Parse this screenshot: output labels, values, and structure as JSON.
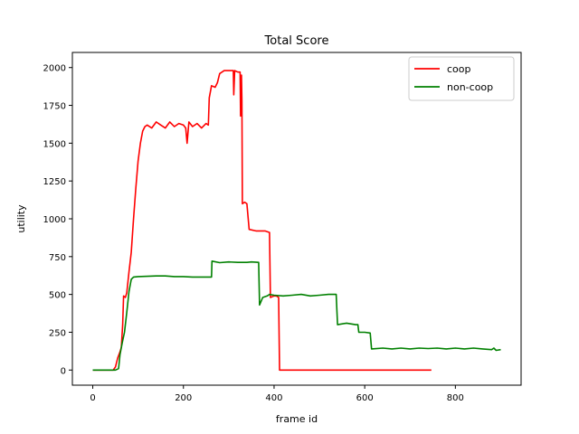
{
  "chart_data": {
    "type": "line",
    "title": "Total Score",
    "xlabel": "frame id",
    "ylabel": "utility",
    "xlim": [
      -45,
      945
    ],
    "ylim": [
      -100,
      2100
    ],
    "xticks": [
      0,
      200,
      400,
      600,
      800
    ],
    "yticks": [
      0,
      250,
      500,
      750,
      1000,
      1250,
      1500,
      1750,
      2000
    ],
    "grid": false,
    "legend_position": "top-right",
    "series": [
      {
        "name": "coop",
        "color": "#ff0000",
        "points": [
          [
            0,
            0
          ],
          [
            45,
            0
          ],
          [
            50,
            20
          ],
          [
            55,
            80
          ],
          [
            60,
            120
          ],
          [
            63,
            150
          ],
          [
            66,
            300
          ],
          [
            68,
            490
          ],
          [
            72,
            480
          ],
          [
            75,
            510
          ],
          [
            80,
            650
          ],
          [
            85,
            780
          ],
          [
            90,
            1000
          ],
          [
            95,
            1200
          ],
          [
            100,
            1380
          ],
          [
            105,
            1500
          ],
          [
            110,
            1580
          ],
          [
            115,
            1610
          ],
          [
            120,
            1620
          ],
          [
            130,
            1600
          ],
          [
            140,
            1640
          ],
          [
            150,
            1620
          ],
          [
            160,
            1600
          ],
          [
            170,
            1640
          ],
          [
            180,
            1610
          ],
          [
            190,
            1630
          ],
          [
            200,
            1620
          ],
          [
            205,
            1600
          ],
          [
            208,
            1500
          ],
          [
            212,
            1640
          ],
          [
            220,
            1610
          ],
          [
            230,
            1630
          ],
          [
            240,
            1600
          ],
          [
            250,
            1630
          ],
          [
            255,
            1620
          ],
          [
            257,
            1800
          ],
          [
            262,
            1880
          ],
          [
            270,
            1870
          ],
          [
            275,
            1900
          ],
          [
            280,
            1960
          ],
          [
            290,
            1980
          ],
          [
            300,
            1980
          ],
          [
            310,
            1980
          ],
          [
            311,
            1820
          ],
          [
            313,
            1980
          ],
          [
            320,
            1970
          ],
          [
            325,
            1970
          ],
          [
            326,
            1680
          ],
          [
            328,
            1950
          ],
          [
            329,
            1780
          ],
          [
            330,
            1100
          ],
          [
            335,
            1110
          ],
          [
            340,
            1100
          ],
          [
            345,
            930
          ],
          [
            360,
            920
          ],
          [
            370,
            920
          ],
          [
            380,
            920
          ],
          [
            390,
            910
          ],
          [
            392,
            480
          ],
          [
            400,
            490
          ],
          [
            405,
            490
          ],
          [
            410,
            480
          ],
          [
            412,
            0
          ],
          [
            747,
            0
          ]
        ]
      },
      {
        "name": "non-coop",
        "color": "#008000",
        "points": [
          [
            0,
            0
          ],
          [
            50,
            0
          ],
          [
            57,
            10
          ],
          [
            60,
            100
          ],
          [
            65,
            180
          ],
          [
            70,
            250
          ],
          [
            75,
            380
          ],
          [
            80,
            520
          ],
          [
            85,
            600
          ],
          [
            90,
            615
          ],
          [
            100,
            618
          ],
          [
            120,
            620
          ],
          [
            140,
            622
          ],
          [
            160,
            622
          ],
          [
            180,
            618
          ],
          [
            200,
            618
          ],
          [
            220,
            615
          ],
          [
            240,
            615
          ],
          [
            262,
            615
          ],
          [
            263,
            720
          ],
          [
            280,
            710
          ],
          [
            300,
            715
          ],
          [
            320,
            712
          ],
          [
            340,
            712
          ],
          [
            350,
            715
          ],
          [
            366,
            712
          ],
          [
            368,
            430
          ],
          [
            375,
            480
          ],
          [
            385,
            490
          ],
          [
            390,
            500
          ],
          [
            400,
            495
          ],
          [
            420,
            490
          ],
          [
            440,
            495
          ],
          [
            460,
            500
          ],
          [
            480,
            490
          ],
          [
            500,
            495
          ],
          [
            520,
            500
          ],
          [
            537,
            500
          ],
          [
            540,
            300
          ],
          [
            560,
            310
          ],
          [
            580,
            300
          ],
          [
            585,
            300
          ],
          [
            587,
            250
          ],
          [
            600,
            250
          ],
          [
            612,
            245
          ],
          [
            615,
            140
          ],
          [
            640,
            145
          ],
          [
            660,
            140
          ],
          [
            680,
            145
          ],
          [
            700,
            140
          ],
          [
            720,
            145
          ],
          [
            740,
            142
          ],
          [
            760,
            145
          ],
          [
            780,
            140
          ],
          [
            800,
            145
          ],
          [
            820,
            140
          ],
          [
            840,
            145
          ],
          [
            860,
            140
          ],
          [
            880,
            135
          ],
          [
            885,
            145
          ],
          [
            890,
            130
          ],
          [
            900,
            135
          ]
        ]
      }
    ]
  }
}
